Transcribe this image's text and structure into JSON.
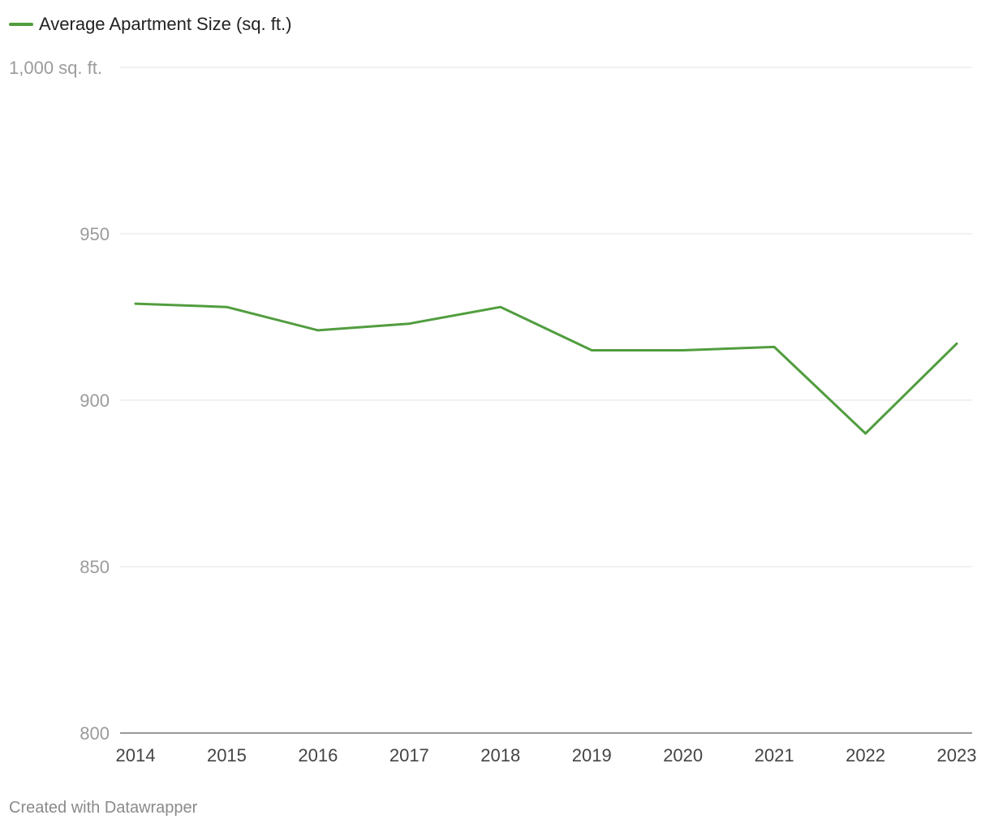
{
  "chart_data": {
    "type": "line",
    "x": [
      "2014",
      "2015",
      "2016",
      "2017",
      "2018",
      "2019",
      "2020",
      "2021",
      "2022",
      "2023"
    ],
    "series": [
      {
        "name": "Average Apartment Size (sq. ft.)",
        "values": [
          929,
          928,
          921,
          923,
          928,
          915,
          915,
          916,
          890,
          917
        ],
        "color": "#519d3f"
      }
    ],
    "ylim": [
      800,
      1000
    ],
    "yticks": [
      800,
      850,
      900,
      950,
      1000
    ],
    "ytick_labels": [
      "800",
      "850",
      "900",
      "950",
      "1,000 sq. ft."
    ],
    "grid": true,
    "legend": "top-left"
  },
  "footer": "Created with Datawrapper"
}
